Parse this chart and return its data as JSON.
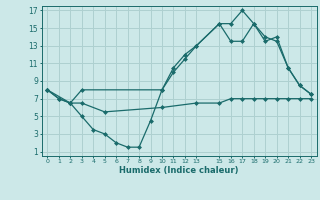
{
  "xlabel": "Humidex (Indice chaleur)",
  "bg_color": "#cce8e8",
  "grid_color": "#aed0d0",
  "line_color": "#1a6b6b",
  "xlim": [
    -0.5,
    23.5
  ],
  "ylim": [
    0.5,
    17.5
  ],
  "xticks": [
    0,
    1,
    2,
    3,
    4,
    5,
    6,
    7,
    8,
    9,
    10,
    11,
    12,
    13,
    15,
    16,
    17,
    18,
    19,
    20,
    21,
    22,
    23
  ],
  "yticks": [
    1,
    3,
    5,
    7,
    9,
    11,
    13,
    15,
    17
  ],
  "line1_x": [
    0,
    1,
    2,
    3,
    4,
    5,
    6,
    7,
    8,
    9,
    10,
    11,
    12,
    13,
    15,
    16,
    17,
    18,
    19,
    20,
    21,
    22,
    23
  ],
  "line1_y": [
    8,
    7,
    6.5,
    5,
    3.5,
    3,
    2,
    1.5,
    1.5,
    4.5,
    8,
    10,
    11.5,
    13,
    15.5,
    15.5,
    17,
    15.5,
    14,
    13.5,
    10.5,
    8.5,
    7.5
  ],
  "line2_x": [
    0,
    1,
    2,
    3,
    10,
    11,
    12,
    13,
    15,
    16,
    17,
    18,
    19,
    20,
    21,
    22,
    23
  ],
  "line2_y": [
    8,
    7,
    6.5,
    8,
    8,
    10.5,
    12,
    13,
    15.5,
    13.5,
    13.5,
    15.5,
    13.5,
    14,
    10.5,
    8.5,
    7.5
  ],
  "line3_x": [
    0,
    2,
    3,
    5,
    10,
    13,
    15,
    16,
    17,
    18,
    19,
    20,
    21,
    22,
    23
  ],
  "line3_y": [
    8,
    6.5,
    6.5,
    5.5,
    6,
    6.5,
    6.5,
    7,
    7,
    7,
    7,
    7,
    7,
    7,
    7
  ]
}
